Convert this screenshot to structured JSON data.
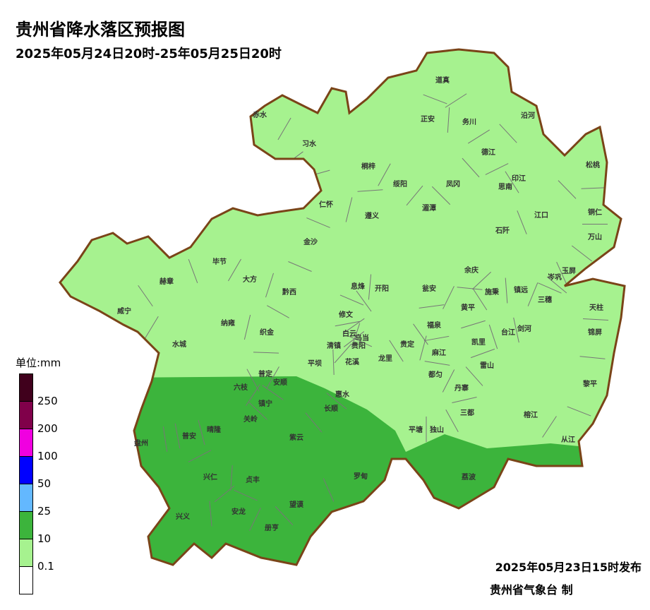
{
  "title": "贵州省降水落区预报图",
  "subtitle": "2025年05月24日20时-25年05月25日20时",
  "legend": {
    "unit_label": "单位:mm",
    "colors": [
      "#40001c",
      "#80004a",
      "#f000e0",
      "#0000ff",
      "#63b8ff",
      "#3cb43c",
      "#a6f28f",
      "#ffffff"
    ],
    "ticks": [
      "250",
      "200",
      "100",
      "50",
      "25",
      "10",
      "0.1"
    ]
  },
  "map": {
    "light_fill": "#a6f28f",
    "heavy_fill": "#3cb43c",
    "border_color": "#7a4418",
    "counties": [
      "赤水",
      "习水",
      "道真",
      "正安",
      "务川",
      "沿河",
      "松桃",
      "桐梓",
      "绥阳",
      "凤冈",
      "德江",
      "印江",
      "思南",
      "江口",
      "铜仁",
      "万山",
      "仁怀",
      "遵义",
      "湄潭",
      "石阡",
      "金沙",
      "毕节",
      "大方",
      "赫章",
      "黔西",
      "息烽",
      "开阳",
      "瓮安",
      "余庆",
      "施秉",
      "镇远",
      "玉屏",
      "岑巩",
      "三穗",
      "天柱",
      "威宁",
      "纳雍",
      "织金",
      "修文",
      "黄平",
      "福泉",
      "凯里",
      "台江",
      "剑河",
      "锦屏",
      "水城",
      "白云",
      "乌当",
      "清镇",
      "贵阳",
      "贵定",
      "麻江",
      "雷山",
      "平坝",
      "花溪",
      "龙里",
      "都匀",
      "丹寨",
      "黎平",
      "普定",
      "安顺",
      "六枝",
      "惠水",
      "长顺",
      "镇宁",
      "关岭",
      "三都",
      "榕江",
      "平塘",
      "独山",
      "从江",
      "盘州",
      "普安",
      "晴隆",
      "紫云",
      "兴仁",
      "贞丰",
      "罗甸",
      "荔波",
      "兴义",
      "安龙",
      "望谟",
      "册亨"
    ]
  },
  "footer": {
    "issue_time": "2025年05月23日15时发布",
    "issuer": "贵州省气象台 制"
  }
}
